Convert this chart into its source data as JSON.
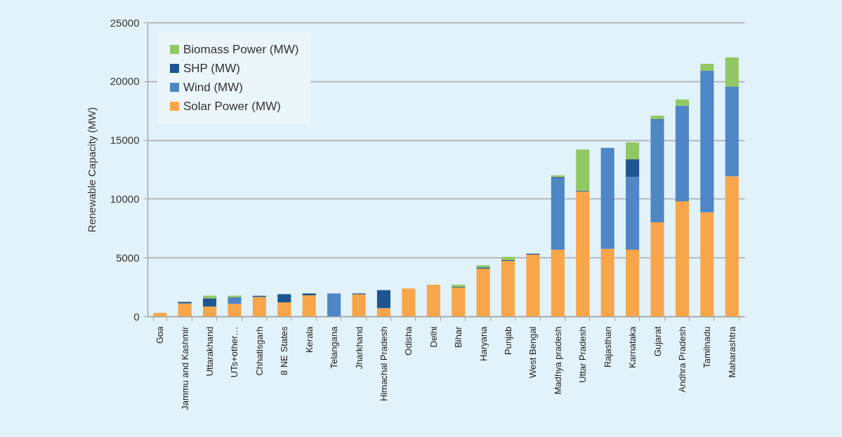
{
  "chart_data": {
    "type": "bar",
    "stacked": true,
    "ylabel": "Renewable Capacity (MW)",
    "categories": [
      "Goa",
      "Jammu and Kashmir",
      "Uttarakhand",
      "UTs+other…",
      "Chhatisgarh",
      "8 NE States",
      "Kerala",
      "Telangana",
      "Jharkhand",
      "Himachal Pradesh",
      "Odisha",
      "Delhi",
      "Bihar",
      "Haryana",
      "Punjab",
      "West Bengal",
      "Madhya pradesh",
      "Uttar Pradesh",
      "Rajasthan",
      "Karnataka",
      "Gujarat",
      "Andhra Pradesh",
      "Tamilnadu",
      "Maharashtra"
    ],
    "series": [
      {
        "name": "Solar Power (MW)",
        "color": "#f9a54a",
        "values": [
          300,
          1100,
          840,
          1060,
          1650,
          1190,
          1790,
          null,
          1870,
          700,
          2370,
          2690,
          2450,
          4060,
          4720,
          5250,
          5670,
          10630,
          5750,
          5670,
          8000,
          9790,
          8840,
          11920
        ]
      },
      {
        "name": "Wind (MW)",
        "color": "#4e86c6",
        "values": [
          null,
          null,
          null,
          550,
          null,
          null,
          null,
          1950,
          null,
          null,
          null,
          null,
          null,
          null,
          null,
          null,
          6090,
          null,
          8580,
          6190,
          8720,
          8120,
          12040,
          7630
        ]
      },
      {
        "name": "SHP (MW)",
        "color": "#1f5590",
        "values": [
          null,
          130,
          690,
          null,
          100,
          700,
          160,
          null,
          80,
          1530,
          null,
          null,
          50,
          100,
          60,
          80,
          90,
          60,
          null,
          1500,
          70,
          null,
          null,
          null
        ]
      },
      {
        "name": "Biomass Power (MW)",
        "color": "#92c864",
        "values": [
          null,
          null,
          230,
          150,
          null,
          null,
          null,
          null,
          null,
          null,
          null,
          null,
          190,
          190,
          280,
          null,
          140,
          3500,
          null,
          1450,
          280,
          540,
          600,
          2480
        ]
      }
    ],
    "ylim": [
      0,
      25000
    ],
    "yticks": [
      0,
      5000,
      10000,
      15000,
      20000,
      25000
    ],
    "grid": "y",
    "legend": "top left"
  }
}
